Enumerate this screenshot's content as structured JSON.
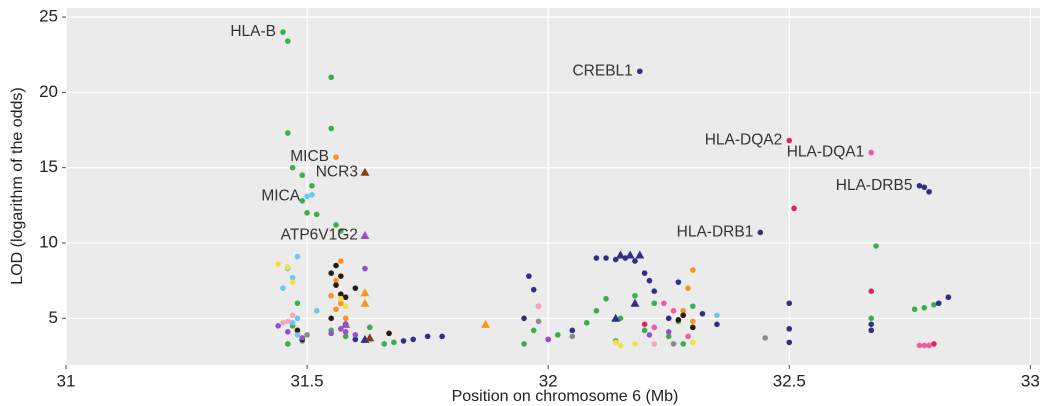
{
  "chart_data": {
    "type": "scatter",
    "x_label": "Position on chromosome 6 (Mb)",
    "y_label": "LOD (logarithm of the odds)",
    "xlim": [
      31,
      33.02
    ],
    "ylim": [
      1.9,
      25.6
    ],
    "xticks": [
      31,
      31.5,
      32,
      32.5,
      33
    ],
    "yticks": [
      5,
      10,
      15,
      20,
      25
    ],
    "grid": true,
    "background": "#ebebeb",
    "series": [
      {
        "color": "#3aae4f",
        "marker": "circle",
        "x": [
          31.45,
          31.46,
          31.55,
          31.46,
          31.55,
          31.47,
          31.49,
          31.51,
          31.49,
          31.5,
          31.52,
          31.56,
          31.57,
          31.48,
          31.47,
          31.46,
          31.49,
          31.55,
          31.58,
          31.63,
          31.66,
          31.68,
          31.95,
          31.97,
          32.02,
          32.08,
          32.1,
          32.12,
          32.15,
          32.18,
          32.2,
          32.22,
          32.25,
          32.27,
          32.3,
          32.68,
          32.67,
          32.76,
          32.78,
          32.8,
          32.14,
          32.28
        ],
        "values": [
          24.0,
          23.4,
          21.0,
          17.3,
          17.6,
          15.0,
          14.5,
          13.8,
          12.8,
          12.0,
          11.9,
          11.2,
          10.8,
          6.0,
          4.5,
          3.3,
          3.5,
          4.2,
          3.8,
          4.4,
          3.3,
          3.4,
          3.3,
          4.2,
          3.9,
          4.7,
          5.5,
          6.3,
          5.0,
          6.5,
          4.2,
          6.0,
          3.8,
          4.8,
          5.8,
          9.8,
          5.0,
          5.6,
          5.7,
          5.9,
          3.5,
          3.3
        ]
      },
      {
        "color": "#2e2f85",
        "marker": "circle",
        "x": [
          32.19,
          32.44,
          32.77,
          32.78,
          32.79,
          31.96,
          31.97,
          32.1,
          32.12,
          32.14,
          32.16,
          32.18,
          32.2,
          32.21,
          32.22,
          32.27,
          32.5,
          32.5,
          32.5,
          32.67,
          32.67,
          32.81,
          32.83,
          31.7,
          31.72,
          31.75,
          31.78,
          31.6,
          32.05,
          32.32,
          32.35,
          32.25,
          31.95,
          32.0
        ],
        "values": [
          21.4,
          10.7,
          13.8,
          13.7,
          13.4,
          7.8,
          6.9,
          9.0,
          9.0,
          8.9,
          9.0,
          8.8,
          8.0,
          7.5,
          6.8,
          7.4,
          6.0,
          4.3,
          3.4,
          4.6,
          4.2,
          6.0,
          6.4,
          3.5,
          3.6,
          3.8,
          3.8,
          3.6,
          4.2,
          5.3,
          4.6,
          5.0,
          5.0,
          3.6
        ]
      },
      {
        "color": "#2e2f85",
        "marker": "triangle",
        "x": [
          31.62,
          32.15,
          32.17,
          32.19,
          32.18,
          32.14
        ],
        "values": [
          3.6,
          9.2,
          9.2,
          9.2,
          6.0,
          5.0
        ]
      },
      {
        "color": "#e0245e",
        "marker": "circle",
        "x": [
          32.5,
          32.51,
          32.67,
          32.2,
          32.8,
          31.98
        ],
        "values": [
          16.8,
          12.3,
          6.8,
          4.6,
          3.3,
          5.8
        ]
      },
      {
        "color": "#ef5ba1",
        "marker": "circle",
        "x": [
          32.67,
          32.24,
          32.26,
          32.22,
          32.78,
          32.77,
          32.79,
          32.29
        ],
        "values": [
          16.0,
          6.0,
          5.5,
          4.4,
          3.2,
          3.2,
          3.2,
          3.8
        ]
      },
      {
        "color": "#f7941d",
        "marker": "circle",
        "x": [
          31.56,
          31.57,
          31.56,
          31.55,
          31.57,
          31.56,
          31.58,
          32.3,
          32.29,
          32.28,
          32.3
        ],
        "values": [
          15.7,
          8.8,
          7.5,
          6.5,
          6.0,
          5.6,
          5.0,
          8.2,
          7.0,
          5.5,
          4.8
        ]
      },
      {
        "color": "#f7941d",
        "marker": "triangle",
        "x": [
          31.62,
          31.62,
          31.87
        ],
        "values": [
          6.7,
          6.0,
          4.6
        ]
      },
      {
        "color": "#8b3a1a",
        "marker": "triangle",
        "x": [
          31.62,
          31.63
        ],
        "values": [
          14.7,
          3.7
        ]
      },
      {
        "color": "#2a1a10",
        "marker": "circle",
        "x": [
          31.55,
          31.56,
          31.57,
          31.58,
          31.55,
          31.58,
          31.6,
          31.56,
          31.57,
          32.28,
          32.3,
          32.27,
          31.67,
          31.48,
          31.49
        ],
        "values": [
          8.0,
          7.2,
          6.6,
          6.4,
          5.0,
          4.6,
          7.0,
          8.5,
          7.8,
          5.2,
          4.4,
          4.9,
          4.0,
          4.2,
          3.6
        ]
      },
      {
        "color": "#6ec6f0",
        "marker": "circle",
        "x": [
          31.5,
          31.51,
          31.48,
          31.46,
          31.47,
          31.45,
          31.48,
          31.47,
          31.52,
          31.48,
          32.35
        ],
        "values": [
          13.1,
          13.2,
          9.1,
          8.3,
          7.7,
          7.0,
          5.0,
          4.7,
          5.5,
          3.9,
          5.2
        ]
      },
      {
        "color": "#9b4dca",
        "marker": "circle",
        "x": [
          31.62,
          31.44,
          31.46,
          31.49,
          31.55,
          31.57,
          31.58,
          31.6,
          32.0,
          32.21,
          32.25
        ],
        "values": [
          8.3,
          4.5,
          4.1,
          3.7,
          4.0,
          4.3,
          4.1,
          3.9,
          3.6,
          3.9,
          4.1
        ]
      },
      {
        "color": "#9b4dca",
        "marker": "triangle",
        "x": [
          31.62,
          31.58
        ],
        "values": [
          10.5,
          4.6
        ]
      },
      {
        "color": "#f2e33a",
        "marker": "circle",
        "x": [
          31.44,
          31.46,
          31.47,
          31.57,
          31.58,
          32.14,
          32.15,
          32.18,
          32.3
        ],
        "values": [
          8.6,
          8.4,
          7.4,
          6.3,
          5.8,
          3.4,
          3.2,
          3.3,
          3.4
        ]
      },
      {
        "color": "#f4a6c0",
        "marker": "circle",
        "x": [
          31.98,
          31.46,
          31.47,
          31.45,
          32.22
        ],
        "values": [
          5.8,
          4.8,
          5.2,
          4.7,
          3.3
        ]
      },
      {
        "color": "#8a8a8a",
        "marker": "circle",
        "x": [
          31.98,
          32.05,
          32.26,
          32.45,
          31.5
        ],
        "values": [
          4.8,
          3.8,
          3.3,
          3.7,
          3.9
        ]
      }
    ],
    "annotations": [
      {
        "text": "HLA-B",
        "x": 31.45,
        "y": 24.0
      },
      {
        "text": "CREBL1",
        "x": 32.19,
        "y": 21.4
      },
      {
        "text": "HLA-DQA2",
        "x": 32.5,
        "y": 16.8
      },
      {
        "text": "HLA-DQA1",
        "x": 32.67,
        "y": 16.0
      },
      {
        "text": "HLA-DRB5",
        "x": 32.77,
        "y": 13.8
      },
      {
        "text": "HLA-DRB1",
        "x": 32.44,
        "y": 10.7
      },
      {
        "text": "MICB",
        "x": 31.56,
        "y": 15.7
      },
      {
        "text": "NCR3",
        "x": 31.62,
        "y": 14.7
      },
      {
        "text": "MICA",
        "x": 31.5,
        "y": 13.1
      },
      {
        "text": "ATP6V1G2",
        "x": 31.62,
        "y": 10.5
      }
    ]
  }
}
